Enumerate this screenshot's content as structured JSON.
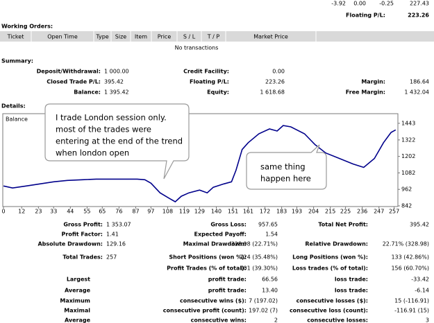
{
  "top": {
    "values": [
      "-3.92",
      "0.00",
      "-0.25",
      "227.43"
    ],
    "floating_label": "Floating P/L:",
    "floating_value": "223.26"
  },
  "working_orders": {
    "title": "Working Orders:",
    "columns": [
      "Ticket",
      "Open Time",
      "Type",
      "Size",
      "Item",
      "Price",
      "S / L",
      "T / P",
      "Market Price"
    ],
    "empty": "No transactions"
  },
  "summary": {
    "title": "Summary:",
    "rows": [
      [
        [
          "Deposit/Withdrawal:",
          "1 000.00"
        ],
        [
          "Credit Facility:",
          "0.00"
        ],
        null
      ],
      [
        [
          "Closed Trade P/L:",
          "395.42"
        ],
        [
          "Floating P/L:",
          "223.26"
        ],
        [
          "Margin:",
          "186.64"
        ]
      ],
      [
        [
          "Balance:",
          "1 395.42"
        ],
        [
          "Equity:",
          "1 618.68"
        ],
        [
          "Free Margin:",
          "1 432.04"
        ]
      ]
    ]
  },
  "details": {
    "title": "Details:"
  },
  "chart_data": {
    "type": "line",
    "x": [
      0,
      6,
      15,
      24,
      33,
      42,
      52,
      61,
      70,
      79,
      88,
      93,
      97,
      103,
      109,
      113,
      117,
      122,
      129,
      134,
      138,
      145,
      150,
      153,
      157,
      161,
      168,
      175,
      180,
      184,
      189,
      198,
      205,
      212,
      221,
      230,
      237,
      244,
      250,
      255,
      258
    ],
    "series": [
      {
        "name": "Balance",
        "color": "#00008b",
        "values": [
          987,
          972,
          987,
          1002,
          1017,
          1027,
          1032,
          1037,
          1037,
          1037,
          1037,
          1032,
          1007,
          937,
          897,
          872,
          912,
          937,
          957,
          937,
          977,
          1002,
          1017,
          1102,
          1252,
          1302,
          1367,
          1402,
          1387,
          1427,
          1417,
          1367,
          1287,
          1227,
          1187,
          1147,
          1122,
          1187,
          1302,
          1377,
          1395
        ]
      }
    ],
    "xlim": [
      0,
      259
    ],
    "xticks": [
      0,
      12,
      23,
      33,
      44,
      55,
      65,
      76,
      87,
      97,
      108,
      119,
      129,
      140,
      151,
      161,
      172,
      183,
      193,
      204,
      215,
      225,
      236,
      247,
      257
    ],
    "ylim": [
      842,
      1503
    ],
    "yticks": [
      842,
      962,
      1082,
      1202,
      1322,
      1443
    ],
    "annotations": [
      {
        "lines": [
          "I trade London session only.",
          "most of the trades were",
          "entering at the end of the trend",
          "when london open"
        ]
      },
      {
        "lines": [
          "same thing",
          "happen here"
        ]
      }
    ]
  },
  "stats": {
    "rows": [
      [
        [
          "Gross Profit:",
          "1 353.07"
        ],
        [
          "Gross Loss:",
          "957.65"
        ],
        [
          "Total Net Profit:",
          "395.42"
        ]
      ],
      [
        [
          "Profit Factor:",
          "1.41"
        ],
        [
          "Expected Payoff:",
          "1.54"
        ],
        null
      ],
      [
        [
          "Absolute Drawdown:",
          "129.16"
        ],
        [
          "Maximal Drawdown:",
          "328.98 (22.71%)"
        ],
        [
          "Relative Drawdown:",
          "22.71% (328.98)"
        ]
      ],
      [
        [
          "Total Trades:",
          "257"
        ],
        [
          "Short Positions (won %):",
          "124 (35.48%)"
        ],
        [
          "Long Positions (won %):",
          "133 (42.86%)"
        ]
      ],
      [
        null,
        [
          "Profit Trades (% of total):",
          "101 (39.30%)"
        ],
        [
          "Loss trades (% of total):",
          "156 (60.70%)"
        ]
      ],
      [
        [
          "Largest"
        ],
        [
          "profit trade:",
          "66.56"
        ],
        [
          "loss trade:",
          "-33.42"
        ]
      ],
      [
        [
          "Average"
        ],
        [
          "profit trade:",
          "13.40"
        ],
        [
          "loss trade:",
          "-6.14"
        ]
      ],
      [
        [
          "Maximum"
        ],
        [
          "consecutive wins ($):",
          "7 (197.02)"
        ],
        [
          "consecutive losses ($):",
          "15 (-116.91)"
        ]
      ],
      [
        [
          "Maximal"
        ],
        [
          "consecutive profit (count):",
          "197.02 (7)"
        ],
        [
          "consecutive loss (count):",
          "-116.91 (15)"
        ]
      ],
      [
        [
          "Average"
        ],
        [
          "consecutive wins:",
          "2"
        ],
        [
          "consecutive losses:",
          "3"
        ]
      ]
    ]
  }
}
